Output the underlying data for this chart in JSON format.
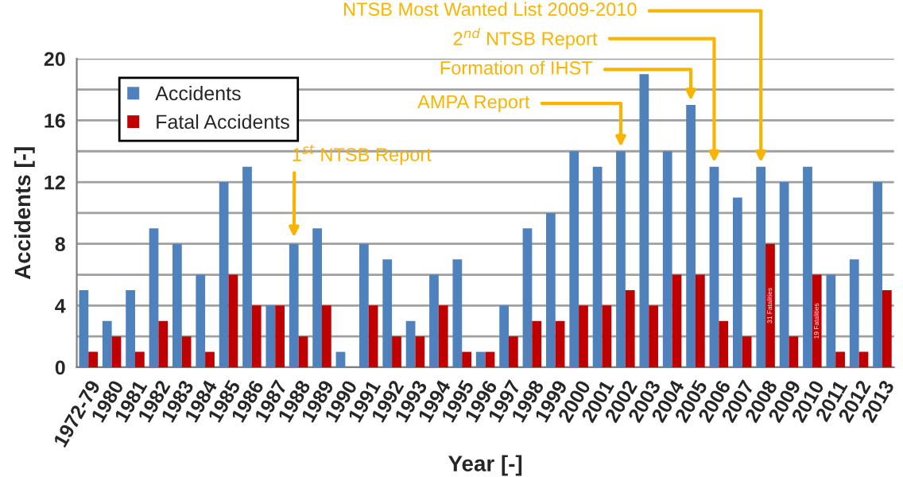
{
  "chart_data": {
    "type": "bar",
    "categories": [
      "1972-79",
      "1980",
      "1981",
      "1982",
      "1983",
      "1984",
      "1985",
      "1986",
      "1987",
      "1988",
      "1989",
      "1990",
      "1991",
      "1992",
      "1993",
      "1994",
      "1995",
      "1996",
      "1997",
      "1998",
      "1999",
      "2000",
      "2001",
      "2002",
      "2003",
      "2004",
      "2005",
      "2006",
      "2007",
      "2008",
      "2009",
      "2010",
      "2011",
      "2012",
      "2013"
    ],
    "series": [
      {
        "name": "Accidents",
        "color": "#4f81bd",
        "values": [
          5,
          3,
          5,
          9,
          8,
          6,
          12,
          13,
          4,
          8,
          9,
          1,
          8,
          7,
          3,
          6,
          7,
          1,
          4,
          9,
          10,
          14,
          13,
          14,
          19,
          14,
          17,
          13,
          11,
          13,
          12,
          13,
          6,
          7,
          12
        ]
      },
      {
        "name": "Fatal Accidents",
        "color": "#c00000",
        "values": [
          1,
          2,
          1,
          3,
          2,
          1,
          6,
          4,
          4,
          2,
          4,
          0,
          4,
          2,
          2,
          4,
          1,
          1,
          2,
          3,
          3,
          4,
          4,
          5,
          4,
          6,
          6,
          3,
          2,
          8,
          2,
          6,
          1,
          1,
          5
        ]
      }
    ],
    "xlabel": "Year [-]",
    "ylabel": "Accidents [-]",
    "ylim": [
      0,
      20
    ],
    "yticks": [
      0,
      {
        "value": 2,
        "label": null
      },
      4,
      {
        "value": 6,
        "label": null
      },
      8,
      {
        "value": 10,
        "label": null
      },
      12,
      {
        "value": 14,
        "label": null
      },
      16,
      {
        "value": 18,
        "label": null
      },
      20
    ],
    "grid": "y",
    "legend": "top left",
    "annotations": [
      {
        "text": "1$^{st}$ NTSB Report",
        "x": "1988",
        "y": 8
      },
      {
        "text": "AMPA Report",
        "x": "2002",
        "y": 14
      },
      {
        "text": "Formation of IHST",
        "x": "2005",
        "y": 17
      },
      {
        "text": "2$^{nd}$ NTSB Report",
        "x": "2006",
        "y": 13
      },
      {
        "text": "NTSB Most Wanted List 2009-2010",
        "x": "2008",
        "y": 13
      },
      {
        "text": "31 Fatalities",
        "x": "2008",
        "y": 4
      },
      {
        "text": "19 Fatalities",
        "x": "2010",
        "y": 3
      }
    ]
  }
}
